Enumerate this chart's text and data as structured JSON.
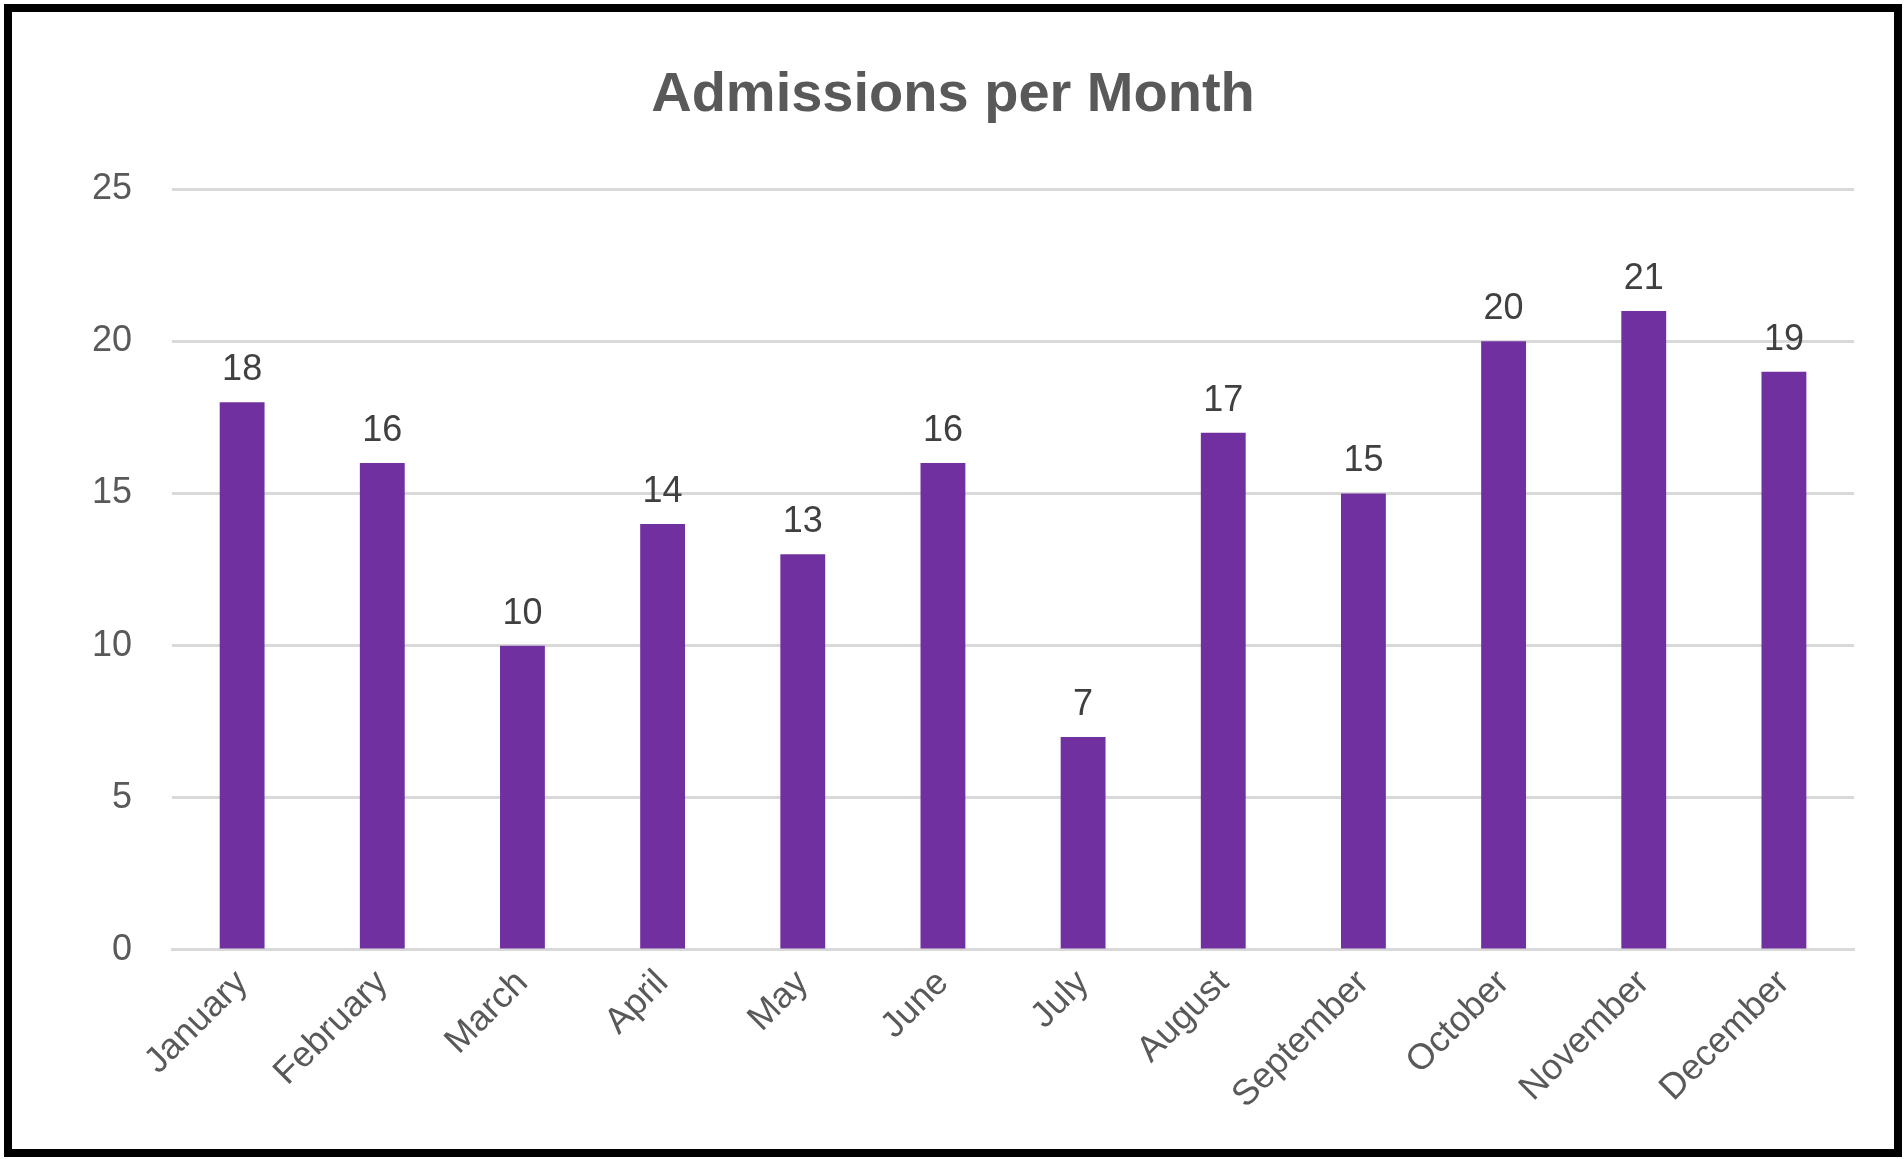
{
  "chart_data": {
    "type": "bar",
    "title": "Admissions per Month",
    "categories": [
      "January",
      "February",
      "March",
      "April",
      "May",
      "June",
      "July",
      "August",
      "September",
      "October",
      "November",
      "December"
    ],
    "values": [
      18,
      16,
      10,
      14,
      13,
      16,
      7,
      17,
      15,
      20,
      21,
      19
    ],
    "color": "#7030a0",
    "ylim": [
      0,
      25
    ],
    "yticks": [
      0,
      5,
      10,
      15,
      20,
      25
    ],
    "grid": "y",
    "data_labels": true
  }
}
